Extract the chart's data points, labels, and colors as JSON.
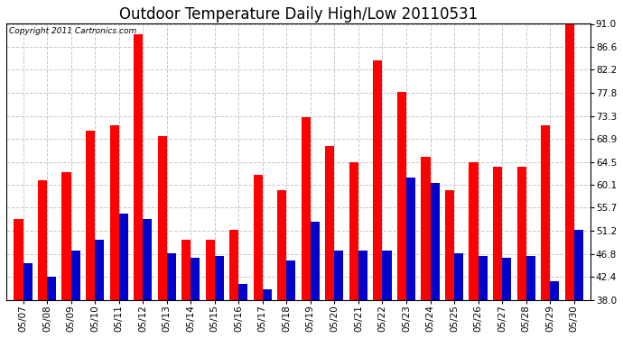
{
  "title": "Outdoor Temperature Daily High/Low 20110531",
  "copyright_text": "Copyright 2011 Cartronics.com",
  "dates": [
    "05/07",
    "05/08",
    "05/09",
    "05/10",
    "05/11",
    "05/12",
    "05/13",
    "05/14",
    "05/15",
    "05/16",
    "05/17",
    "05/18",
    "05/19",
    "05/20",
    "05/21",
    "05/22",
    "05/23",
    "05/24",
    "05/25",
    "05/26",
    "05/27",
    "05/28",
    "05/29",
    "05/30"
  ],
  "highs": [
    53.5,
    61.0,
    62.5,
    70.5,
    71.5,
    89.0,
    69.5,
    49.5,
    49.5,
    51.5,
    62.0,
    59.0,
    73.0,
    67.5,
    64.5,
    84.0,
    78.0,
    65.5,
    59.0,
    64.5,
    63.5,
    63.5,
    71.5,
    91.0
  ],
  "lows": [
    45.0,
    42.5,
    47.5,
    49.5,
    54.5,
    53.5,
    47.0,
    46.0,
    46.5,
    41.0,
    40.0,
    45.5,
    53.0,
    47.5,
    47.5,
    47.5,
    61.5,
    60.5,
    47.0,
    46.5,
    46.0,
    46.5,
    41.5,
    51.5
  ],
  "high_color": "#ff0000",
  "low_color": "#0000cc",
  "background_color": "#ffffff",
  "plot_bg_color": "#ffffff",
  "grid_color": "#c8c8c8",
  "yticks": [
    38.0,
    42.4,
    46.8,
    51.2,
    55.7,
    60.1,
    64.5,
    68.9,
    73.3,
    77.8,
    82.2,
    86.6,
    91.0
  ],
  "ymin": 38.0,
  "ymax": 91.0,
  "bar_width": 0.38,
  "title_fontsize": 12,
  "tick_fontsize": 7.5,
  "copyright_fontsize": 6.5
}
